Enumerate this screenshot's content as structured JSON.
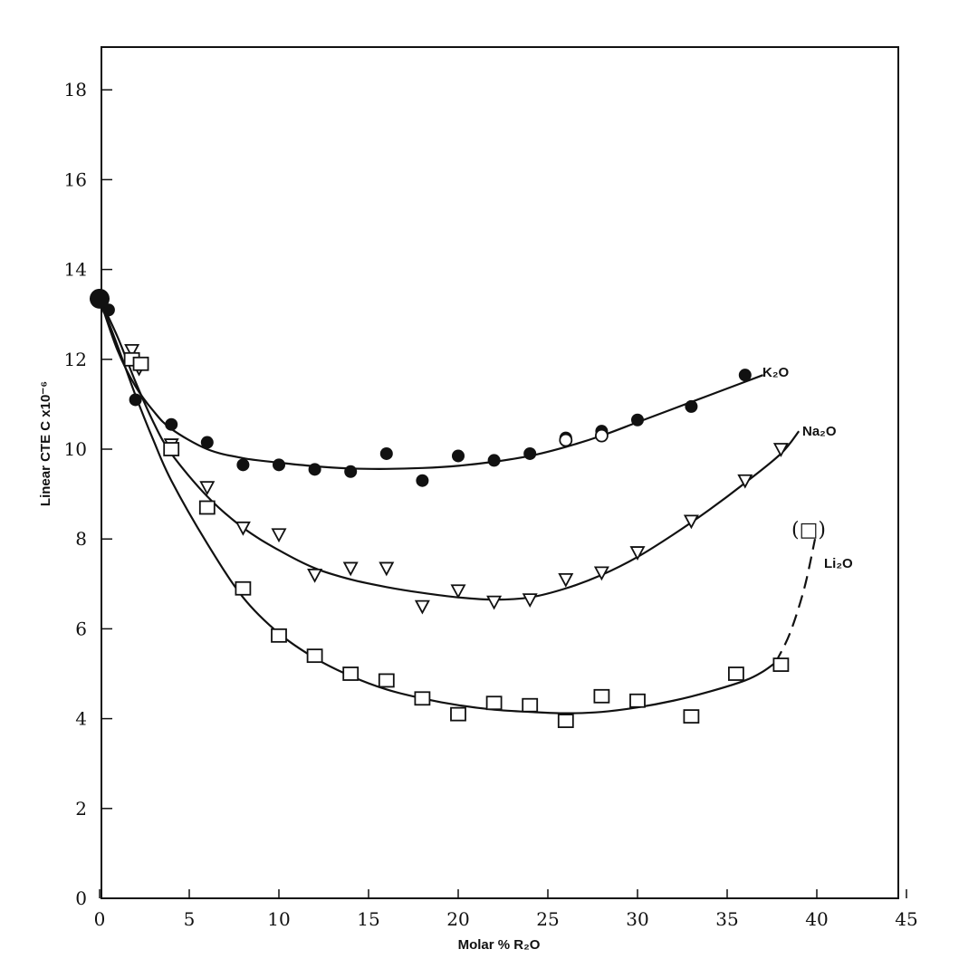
{
  "chart_data": {
    "type": "scatter",
    "xlabel": "Molar % R₂O",
    "ylabel": "Linear CTE C x10⁻⁶",
    "xlim": [
      0,
      45
    ],
    "ylim": [
      0,
      19
    ],
    "x_ticks": [
      0,
      5,
      10,
      15,
      20,
      25,
      30,
      35,
      40,
      45
    ],
    "y_ticks": [
      0,
      2,
      4,
      6,
      8,
      10,
      12,
      14,
      16,
      18
    ],
    "grid": false,
    "legend": "none",
    "origin_point": {
      "x": 0,
      "y": 13.35
    },
    "series": [
      {
        "name": "K₂O",
        "marker": "filled-circle",
        "points": [
          [
            0.5,
            13.1
          ],
          [
            2,
            11.1
          ],
          [
            4,
            10.55
          ],
          [
            6,
            10.15
          ],
          [
            8,
            9.65
          ],
          [
            10,
            9.65
          ],
          [
            12,
            9.55
          ],
          [
            14,
            9.5
          ],
          [
            16,
            9.9
          ],
          [
            18,
            9.3
          ],
          [
            20,
            9.85
          ],
          [
            22,
            9.75
          ],
          [
            24,
            9.9
          ],
          [
            26,
            10.25
          ],
          [
            28,
            10.4
          ],
          [
            30,
            10.65
          ],
          [
            33,
            10.95
          ],
          [
            36,
            11.65
          ]
        ],
        "curve": [
          [
            0,
            13.35
          ],
          [
            1,
            12.2
          ],
          [
            2,
            11.4
          ],
          [
            3,
            10.85
          ],
          [
            4,
            10.45
          ],
          [
            6,
            10.0
          ],
          [
            8,
            9.8
          ],
          [
            10,
            9.7
          ],
          [
            12,
            9.62
          ],
          [
            14,
            9.57
          ],
          [
            16,
            9.56
          ],
          [
            18,
            9.58
          ],
          [
            20,
            9.63
          ],
          [
            22,
            9.72
          ],
          [
            24,
            9.85
          ],
          [
            26,
            10.05
          ],
          [
            28,
            10.3
          ],
          [
            30,
            10.6
          ],
          [
            32,
            10.9
          ],
          [
            34,
            11.2
          ],
          [
            36,
            11.5
          ],
          [
            37,
            11.65
          ]
        ],
        "open_circles": [
          [
            26,
            10.2
          ],
          [
            28,
            10.3
          ]
        ]
      },
      {
        "name": "Na₂O",
        "marker": "open-triangle-down",
        "points": [
          [
            1.8,
            12.2
          ],
          [
            2.2,
            11.8
          ],
          [
            4,
            10.1
          ],
          [
            6,
            9.15
          ],
          [
            8,
            8.25
          ],
          [
            10,
            8.1
          ],
          [
            12,
            7.2
          ],
          [
            14,
            7.35
          ],
          [
            16,
            7.35
          ],
          [
            18,
            6.5
          ],
          [
            20,
            6.85
          ],
          [
            22,
            6.6
          ],
          [
            24,
            6.65
          ],
          [
            26,
            7.1
          ],
          [
            28,
            7.25
          ],
          [
            30,
            7.7
          ],
          [
            33,
            8.4
          ],
          [
            36,
            9.3
          ],
          [
            38,
            10.0
          ]
        ],
        "curve": [
          [
            0,
            13.35
          ],
          [
            1,
            12.5
          ],
          [
            2,
            11.5
          ],
          [
            3,
            10.6
          ],
          [
            4,
            9.9
          ],
          [
            6,
            8.95
          ],
          [
            8,
            8.25
          ],
          [
            10,
            7.75
          ],
          [
            12,
            7.35
          ],
          [
            14,
            7.1
          ],
          [
            16,
            6.93
          ],
          [
            18,
            6.8
          ],
          [
            20,
            6.7
          ],
          [
            22,
            6.65
          ],
          [
            24,
            6.7
          ],
          [
            26,
            6.9
          ],
          [
            28,
            7.2
          ],
          [
            30,
            7.6
          ],
          [
            32,
            8.1
          ],
          [
            34,
            8.65
          ],
          [
            36,
            9.25
          ],
          [
            38,
            9.9
          ],
          [
            39,
            10.4
          ]
        ]
      },
      {
        "name": "Li₂O",
        "marker": "open-square",
        "points": [
          [
            1.8,
            12.0
          ],
          [
            2.3,
            11.9
          ],
          [
            4,
            10.0
          ],
          [
            6,
            8.7
          ],
          [
            8,
            6.9
          ],
          [
            10,
            5.85
          ],
          [
            12,
            5.4
          ],
          [
            14,
            5.0
          ],
          [
            16,
            4.85
          ],
          [
            18,
            4.45
          ],
          [
            20,
            4.1
          ],
          [
            22,
            4.35
          ],
          [
            24,
            4.3
          ],
          [
            26,
            3.95
          ],
          [
            28,
            4.5
          ],
          [
            30,
            4.4
          ],
          [
            33,
            4.05
          ],
          [
            35.5,
            5.0
          ],
          [
            38,
            5.2
          ]
        ],
        "curve": [
          [
            0,
            13.35
          ],
          [
            1,
            12.3
          ],
          [
            2,
            11.2
          ],
          [
            3,
            10.2
          ],
          [
            4,
            9.3
          ],
          [
            6,
            7.9
          ],
          [
            8,
            6.7
          ],
          [
            10,
            5.9
          ],
          [
            12,
            5.35
          ],
          [
            14,
            4.95
          ],
          [
            16,
            4.65
          ],
          [
            18,
            4.45
          ],
          [
            20,
            4.3
          ],
          [
            22,
            4.2
          ],
          [
            24,
            4.15
          ],
          [
            26,
            4.12
          ],
          [
            28,
            4.15
          ],
          [
            30,
            4.25
          ],
          [
            32,
            4.4
          ],
          [
            34,
            4.6
          ],
          [
            36,
            4.85
          ],
          [
            37,
            5.05
          ],
          [
            37.7,
            5.25
          ]
        ],
        "dashed_extension": [
          [
            37.7,
            5.25
          ],
          [
            38.5,
            5.9
          ],
          [
            39.3,
            6.9
          ],
          [
            39.9,
            8.0
          ]
        ],
        "bracketed_point": {
          "x": 40,
          "y": 8.3,
          "label": "(□)"
        }
      }
    ]
  },
  "labels": {
    "k2o": "K₂O",
    "na2o": "Na₂O",
    "li2o": "Li₂O",
    "bracket": "(□)"
  }
}
